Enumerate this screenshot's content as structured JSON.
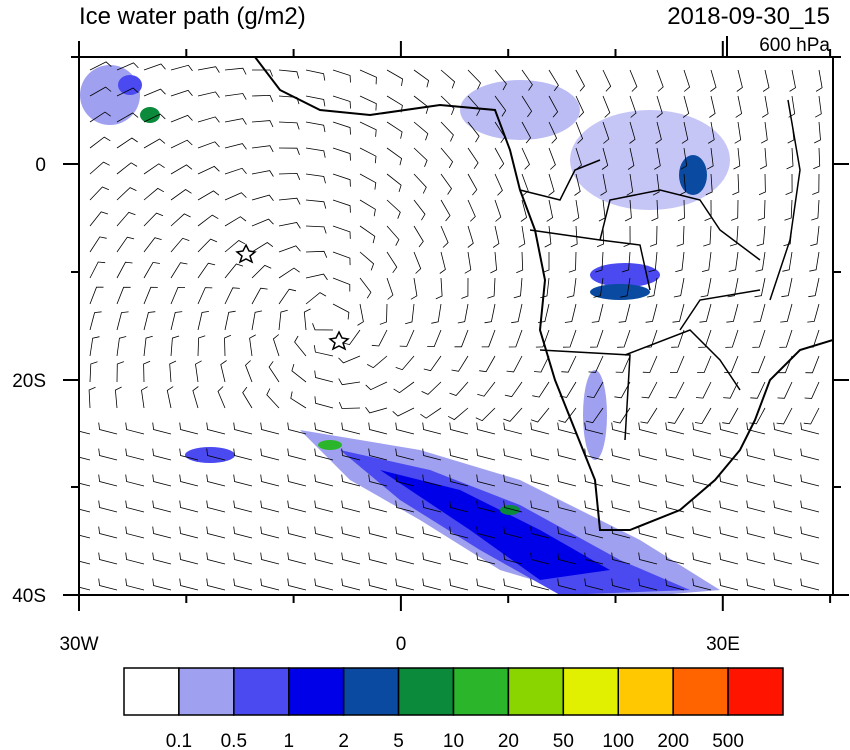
{
  "header": {
    "title": "Ice water path (g/m2)",
    "date": "2018-09-30_15",
    "level": "600 hPa"
  },
  "map": {
    "y_labels": [
      "0",
      "20S",
      "40S"
    ],
    "x_labels": [
      "30W",
      "0",
      "30E"
    ]
  },
  "colorbar": {
    "colors": [
      "#ffffff",
      "#a0a0f0",
      "#4a4af0",
      "#0000e8",
      "#0a4aa0",
      "#0a8a3a",
      "#2ab52a",
      "#8ad400",
      "#e0f000",
      "#ffc800",
      "#ff6400",
      "#ff1400"
    ],
    "labels": [
      "0.1",
      "0.5",
      "1",
      "2",
      "5",
      "10",
      "20",
      "50",
      "100",
      "200",
      "500"
    ]
  }
}
